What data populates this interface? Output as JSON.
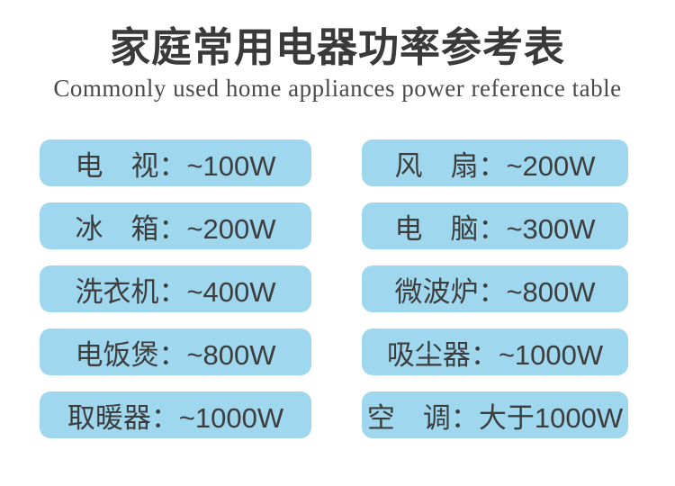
{
  "page": {
    "title": "家庭常用电器功率参考表",
    "subtitle": "Commonly used home appliances power reference table"
  },
  "colors": {
    "page_bg": "#ffffff",
    "cell_bg": "#9ed7ee",
    "title_text": "#3a3a3a",
    "subtitle_text": "#4a4a4a",
    "cell_text": "#3d3d3d"
  },
  "table": {
    "rows": [
      {
        "left": "电　视：~100W",
        "right": "风　扇：~200W"
      },
      {
        "left": "冰　箱：~200W",
        "right": "电　脑：~300W"
      },
      {
        "left": "洗衣机：~400W",
        "right": "微波炉：~800W"
      },
      {
        "left": "电饭煲：~800W",
        "right": "吸尘器：~1000W"
      },
      {
        "left": "取暖器：~1000W",
        "right": "空　调：大于1000W"
      }
    ]
  }
}
